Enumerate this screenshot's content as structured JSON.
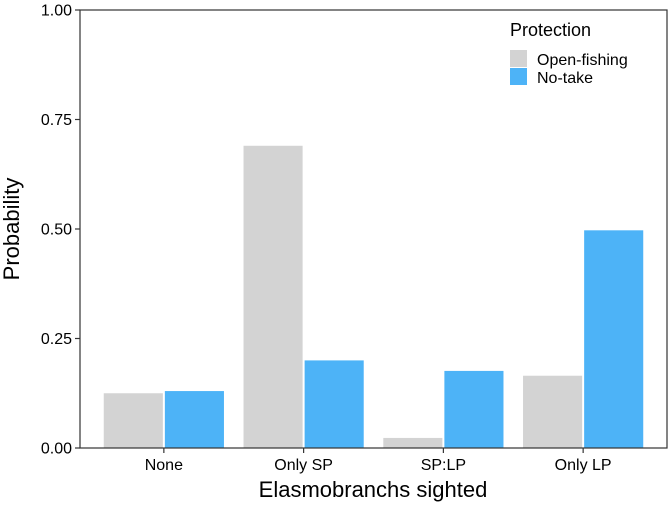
{
  "chart_data": {
    "type": "bar",
    "xlabel": "Elasmobranchs sighted",
    "ylabel": "Probability",
    "categories": [
      "None",
      "Only SP",
      "SP:LP",
      "Only LP"
    ],
    "series": [
      {
        "name": "Open-fishing",
        "values": [
          0.125,
          0.69,
          0.023,
          0.165
        ],
        "color": "#d3d3d3"
      },
      {
        "name": "No-take",
        "values": [
          0.13,
          0.2,
          0.176,
          0.497
        ],
        "color": "#4db3f7"
      }
    ],
    "ylim": [
      0,
      1
    ],
    "yticks": [
      "0.00",
      "0.25",
      "0.50",
      "0.75",
      "1.00"
    ],
    "ytick_values": [
      0,
      0.25,
      0.5,
      0.75,
      1.0
    ],
    "legend": {
      "title": "Protection",
      "placement": "top-right"
    },
    "grid": false
  }
}
